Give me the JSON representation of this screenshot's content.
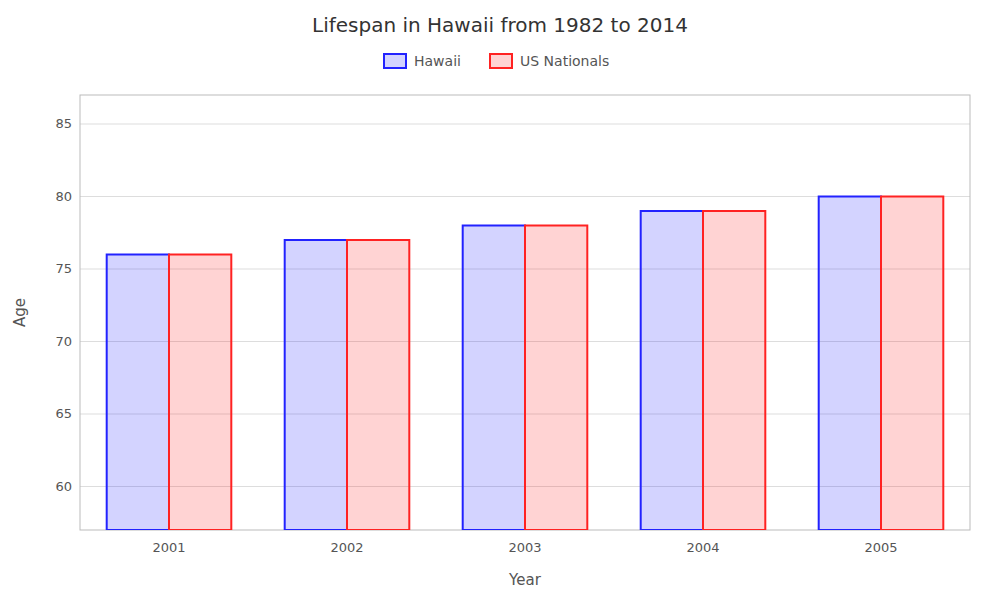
{
  "chart_data": {
    "type": "bar",
    "title": "Lifespan in Hawaii from 1982 to 2014",
    "x_label": "Year",
    "y_label": "Age",
    "categories": [
      "2001",
      "2002",
      "2003",
      "2004",
      "2005"
    ],
    "series": [
      {
        "name": "Hawaii",
        "color": "#2222ff",
        "values": [
          76,
          77,
          78,
          79,
          80
        ]
      },
      {
        "name": "US Nationals",
        "color": "#ff2222",
        "values": [
          76,
          77,
          78,
          79,
          80
        ]
      }
    ],
    "ylim": [
      57,
      87
    ],
    "yticks": [
      60,
      65,
      70,
      75,
      80,
      85
    ],
    "grid": true,
    "legend": "top"
  }
}
